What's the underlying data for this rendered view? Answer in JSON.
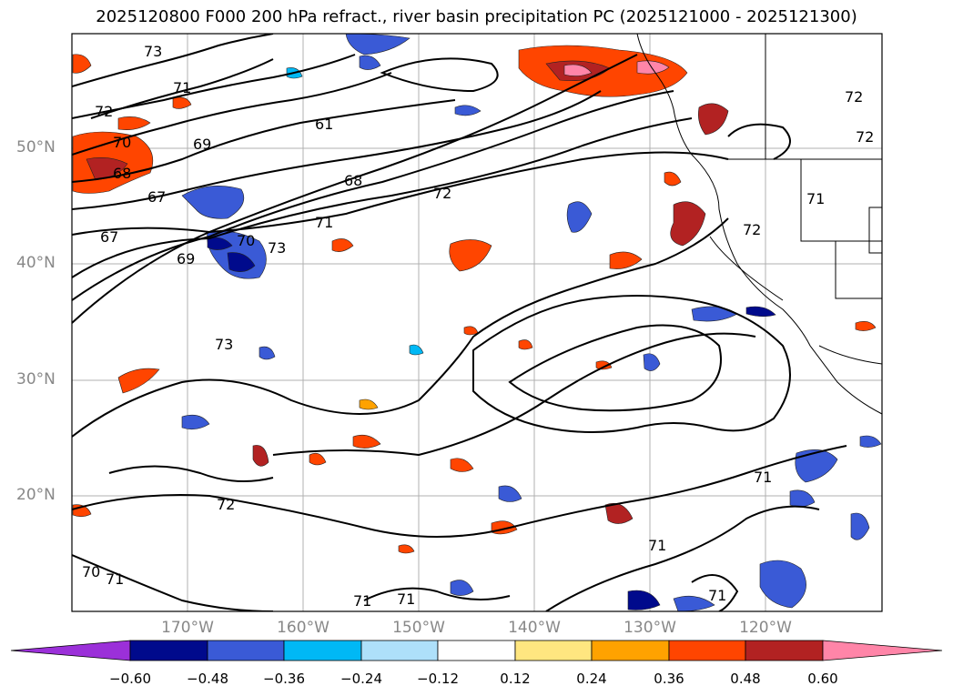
{
  "title": "2025120800 F000 200 hPa refract., river basin precipitation PC (2025121000 - 2025121300)",
  "lat_labels": [
    "50°N",
    "40°N",
    "30°N",
    "20°N"
  ],
  "lon_labels": [
    "170°W",
    "160°W",
    "150°W",
    "140°W",
    "130°W",
    "120°W"
  ],
  "contour_labels": [
    "73",
    "71",
    "72",
    "70",
    "68",
    "67",
    "69",
    "61",
    "68",
    "72",
    "71",
    "69",
    "70",
    "73",
    "67",
    "73",
    "72",
    "71",
    "70",
    "71",
    "71",
    "72",
    "72",
    "71",
    "71",
    "72",
    "71",
    "71"
  ],
  "colorbar": {
    "ticks": [
      "−0.60",
      "−0.48",
      "−0.36",
      "−0.24",
      "−0.12",
      "0.12",
      "0.24",
      "0.36",
      "0.48",
      "0.60"
    ],
    "colors": [
      "#9b30d9",
      "#000a8c",
      "#3a5ad6",
      "#00b8f5",
      "#aee0fa",
      "#ffffff",
      "#ffe680",
      "#ffa200",
      "#ff4500",
      "#b22222",
      "#ff85a8"
    ]
  }
}
